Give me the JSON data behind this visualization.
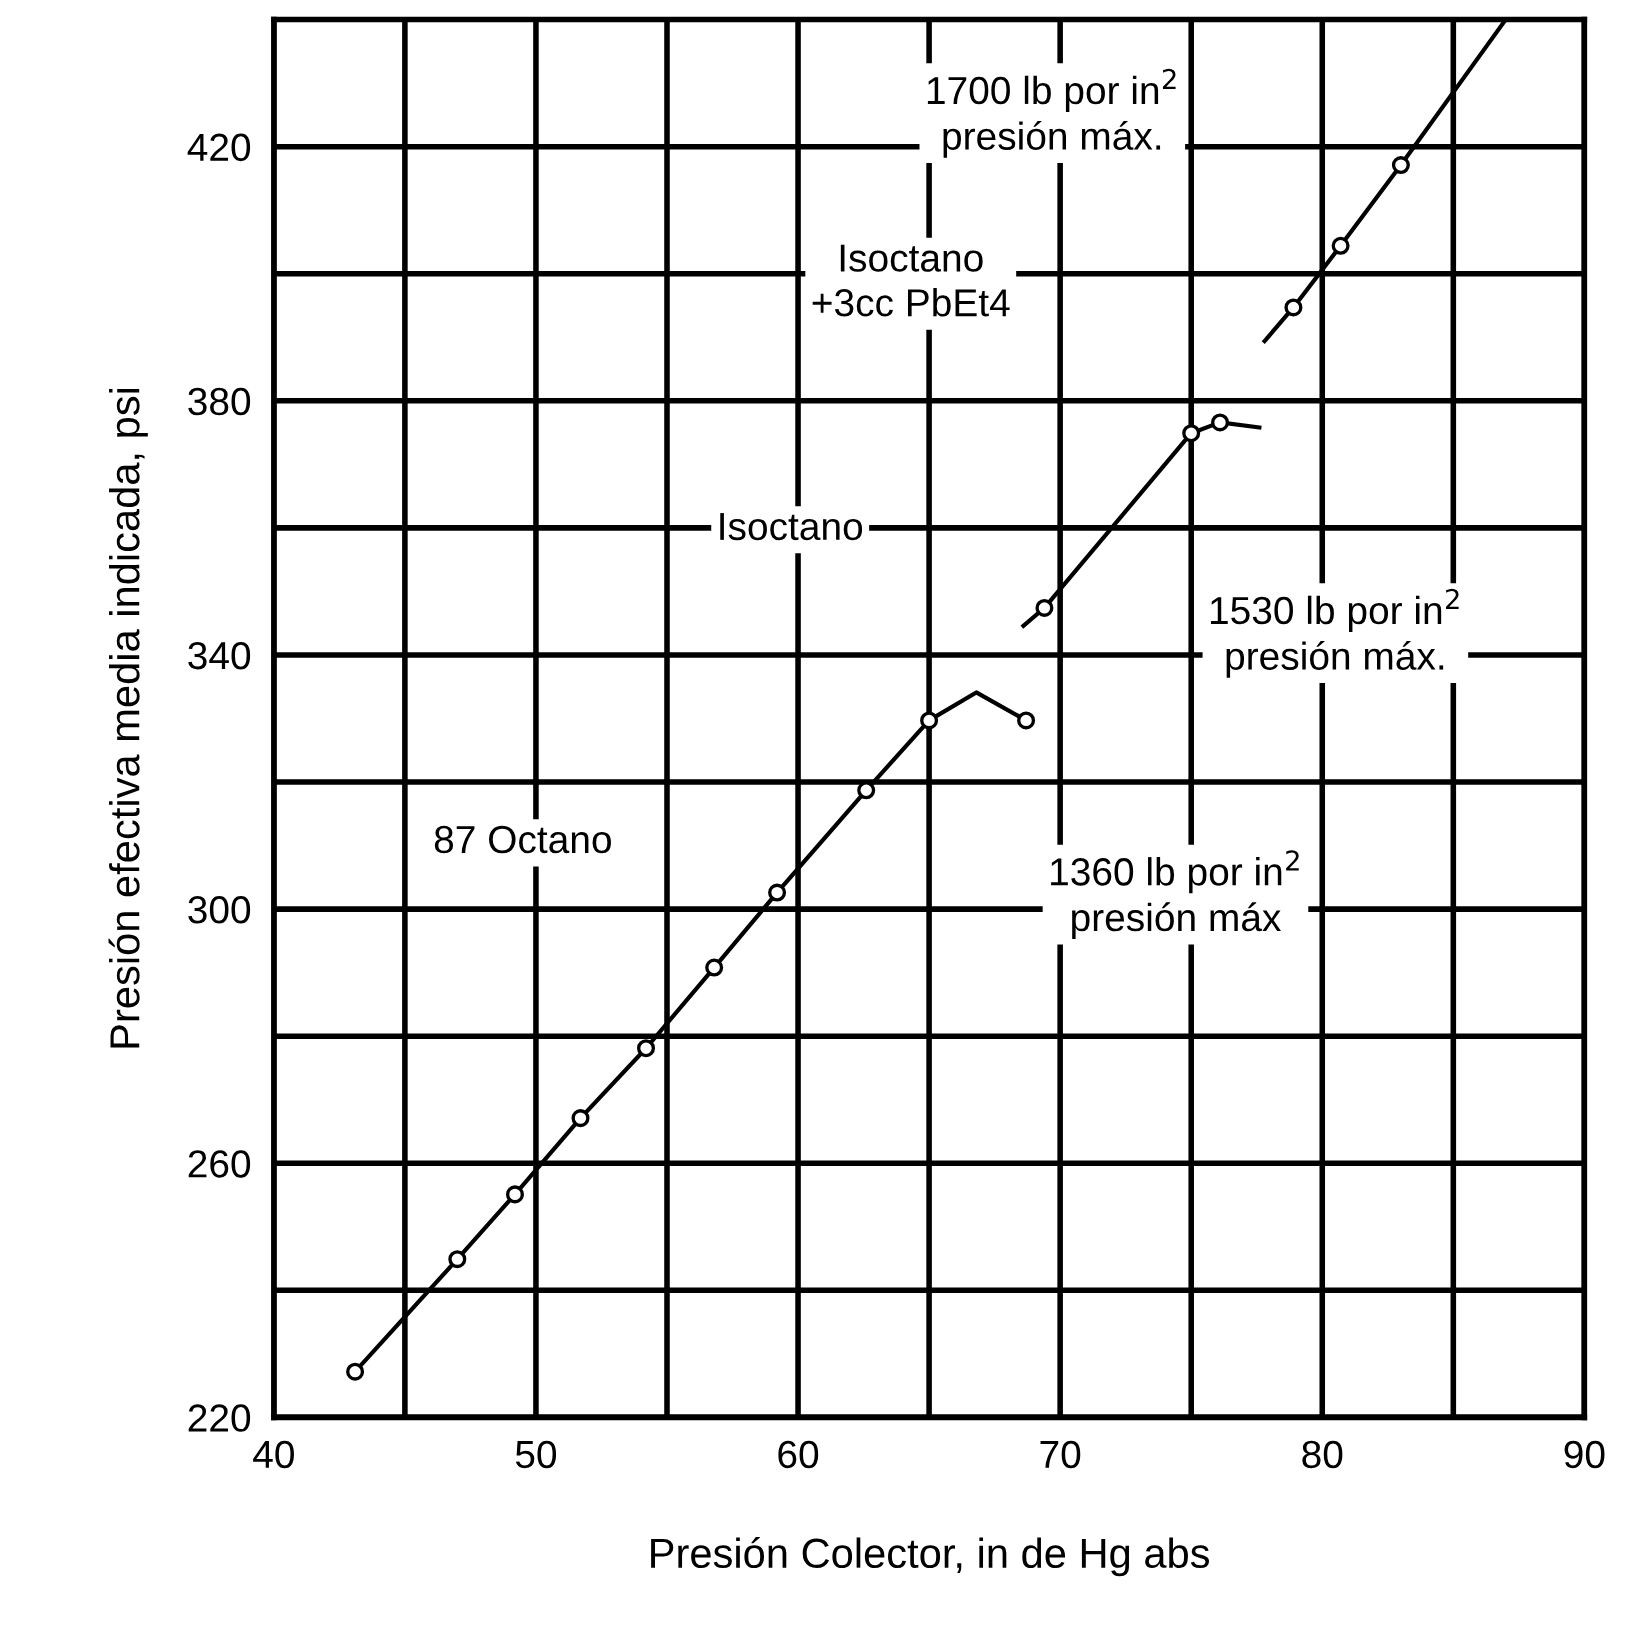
{
  "chart_data": {
    "type": "line",
    "xlabel": "Presión Colector, in de Hg abs",
    "ylabel": "Presión efectiva media indicada, psi",
    "xlim": [
      40,
      90
    ],
    "ylim": [
      220,
      440
    ],
    "xticks": [
      40,
      {
        "value": 45,
        "label": null
      },
      50,
      {
        "value": 55,
        "label": null
      },
      60,
      {
        "value": 65,
        "label": null
      },
      70,
      {
        "value": 75,
        "label": null
      },
      80,
      {
        "value": 85,
        "label": null
      },
      90
    ],
    "yticks": [
      220,
      {
        "value": 240,
        "label": null
      },
      260,
      {
        "value": 280,
        "label": null
      },
      300,
      {
        "value": 320,
        "label": null
      },
      340,
      {
        "value": 360,
        "label": null
      },
      380,
      {
        "value": 400,
        "label": null
      },
      420
    ],
    "grid": true,
    "legend": false,
    "series": [
      {
        "color": "#000000",
        "marker": "none",
        "x": [
          43.1,
          47.0,
          49.2,
          51.7,
          54.2,
          56.8,
          59.2,
          62.6,
          65.0,
          66.8,
          68.7
        ],
        "values": [
          227.2,
          244.9,
          255.1,
          267.1,
          278.1,
          290.8,
          302.6,
          318.7,
          329.7,
          334.1,
          329.7
        ]
      },
      {
        "type": "scatter",
        "color": "#000000",
        "marker": "circle",
        "x": [
          43.1,
          47.0,
          49.2,
          51.7,
          54.2,
          56.8,
          59.2,
          62.6,
          65.0,
          68.7
        ],
        "values": [
          227.2,
          244.9,
          255.1,
          267.1,
          278.1,
          290.8,
          302.6,
          318.7,
          329.7,
          329.7
        ]
      },
      {
        "color": "#000000",
        "marker": "none",
        "x": [
          68.6,
          69.4,
          75.0,
          76.1,
          77.6
        ],
        "values": [
          344.6,
          347.4,
          374.9,
          376.6,
          375.8
        ]
      },
      {
        "type": "scatter",
        "color": "#000000",
        "marker": "circle",
        "x": [
          69.4,
          75.0,
          76.1
        ],
        "values": [
          347.4,
          374.9,
          376.6
        ]
      },
      {
        "color": "#000000",
        "marker": "none",
        "x": [
          77.8,
          78.9,
          80.7,
          83.0,
          87.0
        ],
        "values": [
          389.4,
          394.7,
          404.4,
          417.1,
          440
        ]
      },
      {
        "type": "scatter",
        "color": "#000000",
        "marker": "circle",
        "x": [
          78.9,
          80.7,
          83.0
        ],
        "values": [
          394.7,
          404.4,
          417.1
        ]
      }
    ],
    "annotations": [
      "1700 lb por in$^{2}$\npresión máx.",
      "Isoctano\n+3cc PbEt4",
      "Isoctano",
      "1530 lb por in$^{2}$\npresión máx.",
      "87 Octano",
      "1360 lb por in$^{2}$\npresión máx"
    ]
  }
}
